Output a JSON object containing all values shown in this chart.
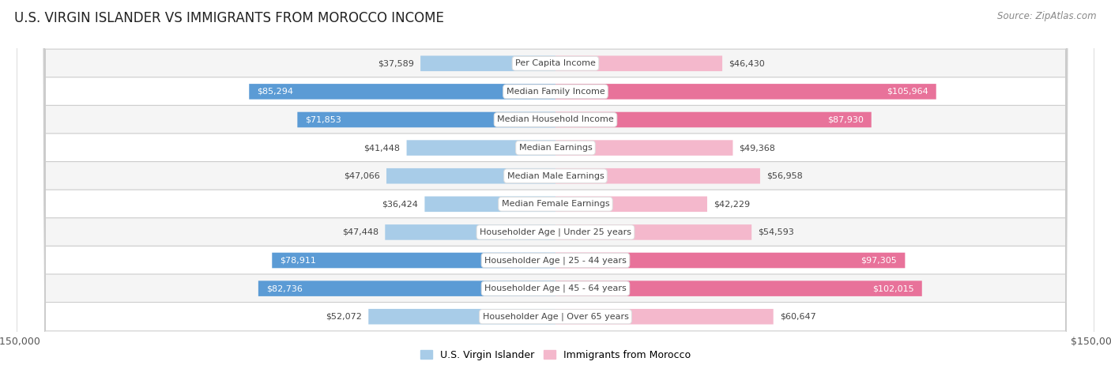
{
  "title": "U.S. VIRGIN ISLANDER VS IMMIGRANTS FROM MOROCCO INCOME",
  "source": "Source: ZipAtlas.com",
  "categories": [
    "Per Capita Income",
    "Median Family Income",
    "Median Household Income",
    "Median Earnings",
    "Median Male Earnings",
    "Median Female Earnings",
    "Householder Age | Under 25 years",
    "Householder Age | 25 - 44 years",
    "Householder Age | 45 - 64 years",
    "Householder Age | Over 65 years"
  ],
  "left_values": [
    37589,
    85294,
    71853,
    41448,
    47066,
    36424,
    47448,
    78911,
    82736,
    52072
  ],
  "right_values": [
    46430,
    105964,
    87930,
    49368,
    56958,
    42229,
    54593,
    97305,
    102015,
    60647
  ],
  "left_color_light": "#a8cce8",
  "left_color_dark": "#5b9bd5",
  "right_color_light": "#f4b8cc",
  "right_color_dark": "#e8729a",
  "bg_color": "#ffffff",
  "row_bg_light": "#f5f5f5",
  "row_bg_white": "#ffffff",
  "max_value": 150000,
  "legend_left_label": "U.S. Virgin Islander",
  "legend_right_label": "Immigrants from Morocco",
  "title_fontsize": 12,
  "source_fontsize": 8.5,
  "bar_label_fontsize": 8,
  "category_fontsize": 8,
  "axis_label_fontsize": 9,
  "large_threshold": 70000
}
